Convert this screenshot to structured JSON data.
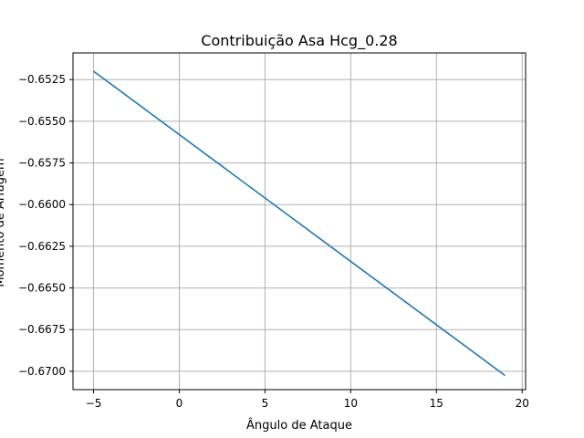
{
  "chart_data": {
    "type": "line",
    "title": "Contribuição Asa Hcg_0.28",
    "xlabel": "Ângulo de Ataque",
    "ylabel": "Momento de Arfagem",
    "xlim": [
      -6.2,
      20.2
    ],
    "ylim": [
      -0.6711,
      -0.6509
    ],
    "grid": true,
    "x_ticks": [
      -5,
      0,
      5,
      10,
      15,
      20
    ],
    "x_tick_labels": [
      "−5",
      "0",
      "5",
      "10",
      "15",
      "20"
    ],
    "y_ticks": [
      -0.6525,
      -0.655,
      -0.6575,
      -0.66,
      -0.6625,
      -0.665,
      -0.6675,
      -0.67
    ],
    "y_tick_labels": [
      "−0.6525",
      "−0.6550",
      "−0.6575",
      "−0.6600",
      "−0.6625",
      "−0.6650",
      "−0.6675",
      "−0.6700"
    ],
    "series": [
      {
        "color": "#1f77b4",
        "x": [
          -5,
          19
        ],
        "y": [
          -0.652,
          -0.67025
        ]
      }
    ]
  }
}
